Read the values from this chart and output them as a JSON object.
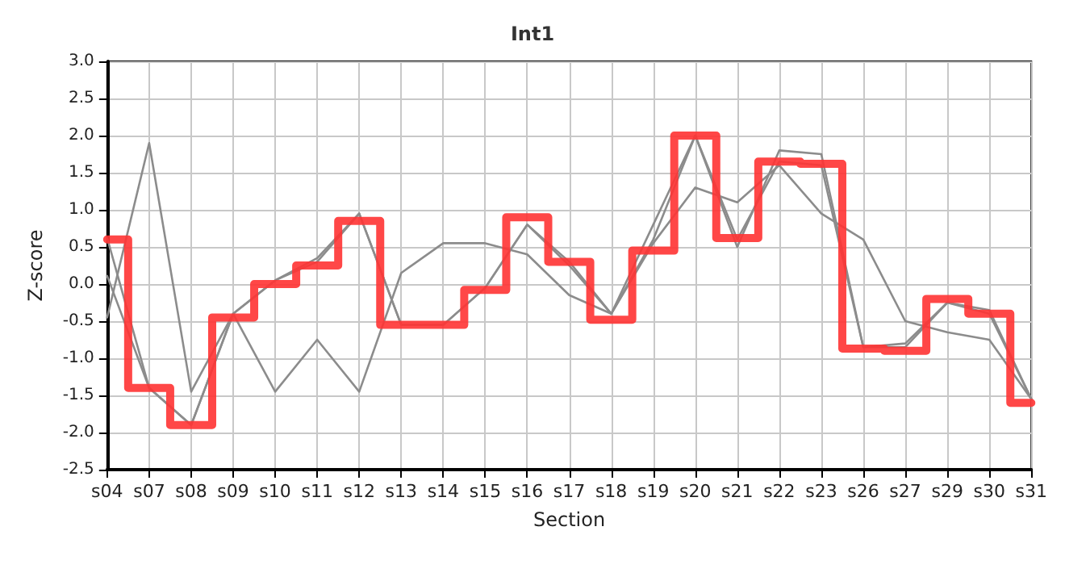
{
  "chart_data": {
    "type": "line",
    "title": "Int1",
    "xlabel": "Section",
    "ylabel": "Z-score",
    "categories": [
      "s04",
      "s07",
      "s08",
      "s09",
      "s10",
      "s11",
      "s12",
      "s13",
      "s14",
      "s15",
      "s16",
      "s17",
      "s18",
      "s19",
      "s20",
      "s21",
      "s22",
      "s23",
      "s26",
      "s27",
      "s29",
      "s30",
      "s31"
    ],
    "ylim": [
      -2.5,
      3.0
    ],
    "yticks": [
      {
        "value": -2.5,
        "label": "-2.5"
      },
      {
        "value": -2,
        "label": "-2.0"
      },
      {
        "value": -1.5,
        "label": "-1.5"
      },
      {
        "value": -1,
        "label": "-1.0"
      },
      {
        "value": -0.5,
        "label": "-0.5"
      },
      {
        "value": 0,
        "label": "0.0"
      },
      {
        "value": 0.5,
        "label": "0.5"
      },
      {
        "value": 1,
        "label": "1.0"
      },
      {
        "value": 1.5,
        "label": "1.5"
      },
      {
        "value": 2,
        "label": "2.0"
      },
      {
        "value": 2.5,
        "label": "2.5"
      },
      {
        "value": 3,
        "label": "3.0"
      }
    ],
    "grid": true,
    "marker": "none",
    "line_style": "solid",
    "series": [
      {
        "color": "#8c8c8c",
        "values": [
          0.62,
          -1.4,
          -1.9,
          -0.4,
          0.05,
          0.3,
          0.95,
          -0.55,
          -0.55,
          -0.05,
          0.8,
          0.3,
          -0.4,
          0.8,
          2.0,
          0.5,
          1.8,
          1.75,
          -0.85,
          -0.85,
          -0.25,
          -0.35,
          -1.55
        ]
      },
      {
        "color": "#8c8c8c",
        "values": [
          -0.45,
          1.9,
          -1.45,
          -0.4,
          0.05,
          0.35,
          0.95,
          -0.55,
          -0.55,
          -0.05,
          0.8,
          0.25,
          -0.4,
          0.6,
          2.0,
          0.6,
          1.65,
          1.6,
          -0.85,
          -0.8,
          -0.25,
          -0.4,
          -1.55
        ]
      },
      {
        "color": "#8c8c8c",
        "values": [
          0.11,
          -1.4,
          -1.9,
          -0.4,
          -1.45,
          -0.75,
          -1.45,
          0.15,
          0.55,
          0.55,
          0.4,
          -0.15,
          -0.4,
          0.55,
          1.3,
          1.1,
          1.6,
          0.95,
          0.6,
          -0.5,
          -0.65,
          -0.75,
          -1.55
        ]
      },
      {
        "type": "step",
        "color": "#ff3333",
        "values": [
          0.6,
          -1.4,
          -1.9,
          -0.45,
          0.0,
          0.25,
          0.85,
          -0.55,
          -0.55,
          -0.08,
          0.9,
          0.3,
          -0.48,
          0.45,
          2.0,
          0.62,
          1.65,
          1.62,
          -0.87,
          -0.9,
          -0.2,
          -0.4,
          -1.6
        ]
      }
    ]
  }
}
